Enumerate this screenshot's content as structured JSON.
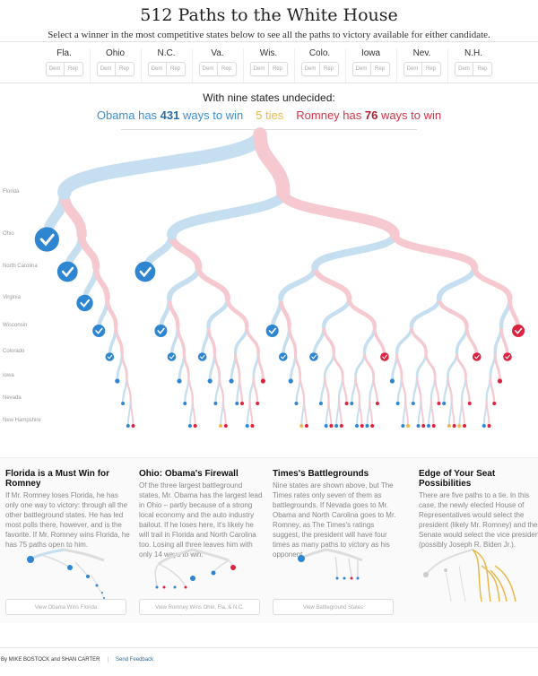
{
  "title": "512 Paths to the White House",
  "subtitle": "Select a winner in the most competitive states below to see all the paths to victory available for either candidate.",
  "states": [
    {
      "name": "Fla.",
      "dem": "Dem",
      "rep": "Rep"
    },
    {
      "name": "Ohio",
      "dem": "Dem",
      "rep": "Rep"
    },
    {
      "name": "N.C.",
      "dem": "Dem",
      "rep": "Rep"
    },
    {
      "name": "Va.",
      "dem": "Dem",
      "rep": "Rep"
    },
    {
      "name": "Wis.",
      "dem": "Dem",
      "rep": "Rep"
    },
    {
      "name": "Colo.",
      "dem": "Dem",
      "rep": "Rep"
    },
    {
      "name": "Iowa",
      "dem": "Dem",
      "rep": "Rep"
    },
    {
      "name": "Nev.",
      "dem": "Dem",
      "rep": "Rep"
    },
    {
      "name": "N.H.",
      "dem": "Dem",
      "rep": "Rep"
    }
  ],
  "summary": {
    "heading": "With nine states undecided:",
    "obama_pre": "Obama has ",
    "obama_count": "431",
    "obama_post": " ways to win",
    "ties": "5 ties",
    "romney_pre": "Romney has ",
    "romney_count": "76",
    "romney_post": " ways to win"
  },
  "tree_rows": [
    "Florida",
    "Ohio",
    "North Carolina",
    "Virginia",
    "Wisconsin",
    "Colorado",
    "Iowa",
    "Nevada",
    "New Hampshire"
  ],
  "colors": {
    "obama": "#2f86d0",
    "romney": "#d9233f",
    "tie": "#e9b94a",
    "obama_light": "#c5dff1",
    "romney_light": "#f5c9cf"
  },
  "panels": [
    {
      "title": "Florida is a Must Win for Romney",
      "text": "If Mr. Romney loses Florida, he has only one way to victory: through all the other battleground states. He has led most polls there, however, and is the favorite. If Mr. Romney wins Florida, he has 75 paths open to him.",
      "button": "View Obama Wins Florida"
    },
    {
      "title": "Ohio: Obama's Firewall",
      "text": "Of the three largest battleground states, Mr. Obama has the largest lead in Ohio – partly because of a strong local economy and the auto industry bailout. If he loses here, it's likely he will trail in Florida and North Carolina too. Losing all three leaves him with only 14 ways to win.",
      "button": "View Romney Wins Ohio, Fla. & N.C."
    },
    {
      "title": "Times's Battlegrounds",
      "text": "Nine states are shown above, but The Times rates only seven of them as battlegrounds. If Nevada goes to Mr. Obama and North Carolina goes to Mr. Romney, as The Times's ratings suggest, the president will have four times as many paths to victory as his opponent.",
      "button": "View Battleground States"
    },
    {
      "title": "Edge of Your Seat Possibilities",
      "text": "There are five paths to a tie. In this case, the newly elected House of Representatives would select the president (likely Mr. Romney) and the Senate would select the vice president (possibly Joseph R. Biden Jr.).",
      "button": ""
    }
  ],
  "footer": {
    "byline": "By MIKE BOSTOCK and SHAN CARTER",
    "separator": "|",
    "feedback": "Send Feedback"
  }
}
